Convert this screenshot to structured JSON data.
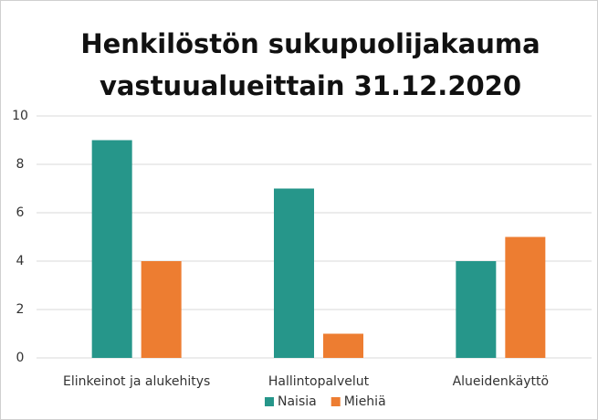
{
  "chart_data": {
    "type": "bar",
    "title": [
      "Henkilöstön sukupuolijakauma",
      "vastuualueittain 31.12.2020"
    ],
    "categories": [
      "Elinkeinot ja alukehitys",
      "Hallintopalvelut",
      "Alueidenkäyttö"
    ],
    "series": [
      {
        "name": "Naisia",
        "color": "#26968a",
        "values": [
          9,
          7,
          4
        ]
      },
      {
        "name": "Miehiä",
        "color": "#ed7d31",
        "values": [
          4,
          1,
          5
        ]
      }
    ],
    "ylim": [
      0,
      10
    ],
    "yticks": [
      0,
      2,
      4,
      6,
      8,
      10
    ],
    "grid": true,
    "legend": "bottom"
  }
}
